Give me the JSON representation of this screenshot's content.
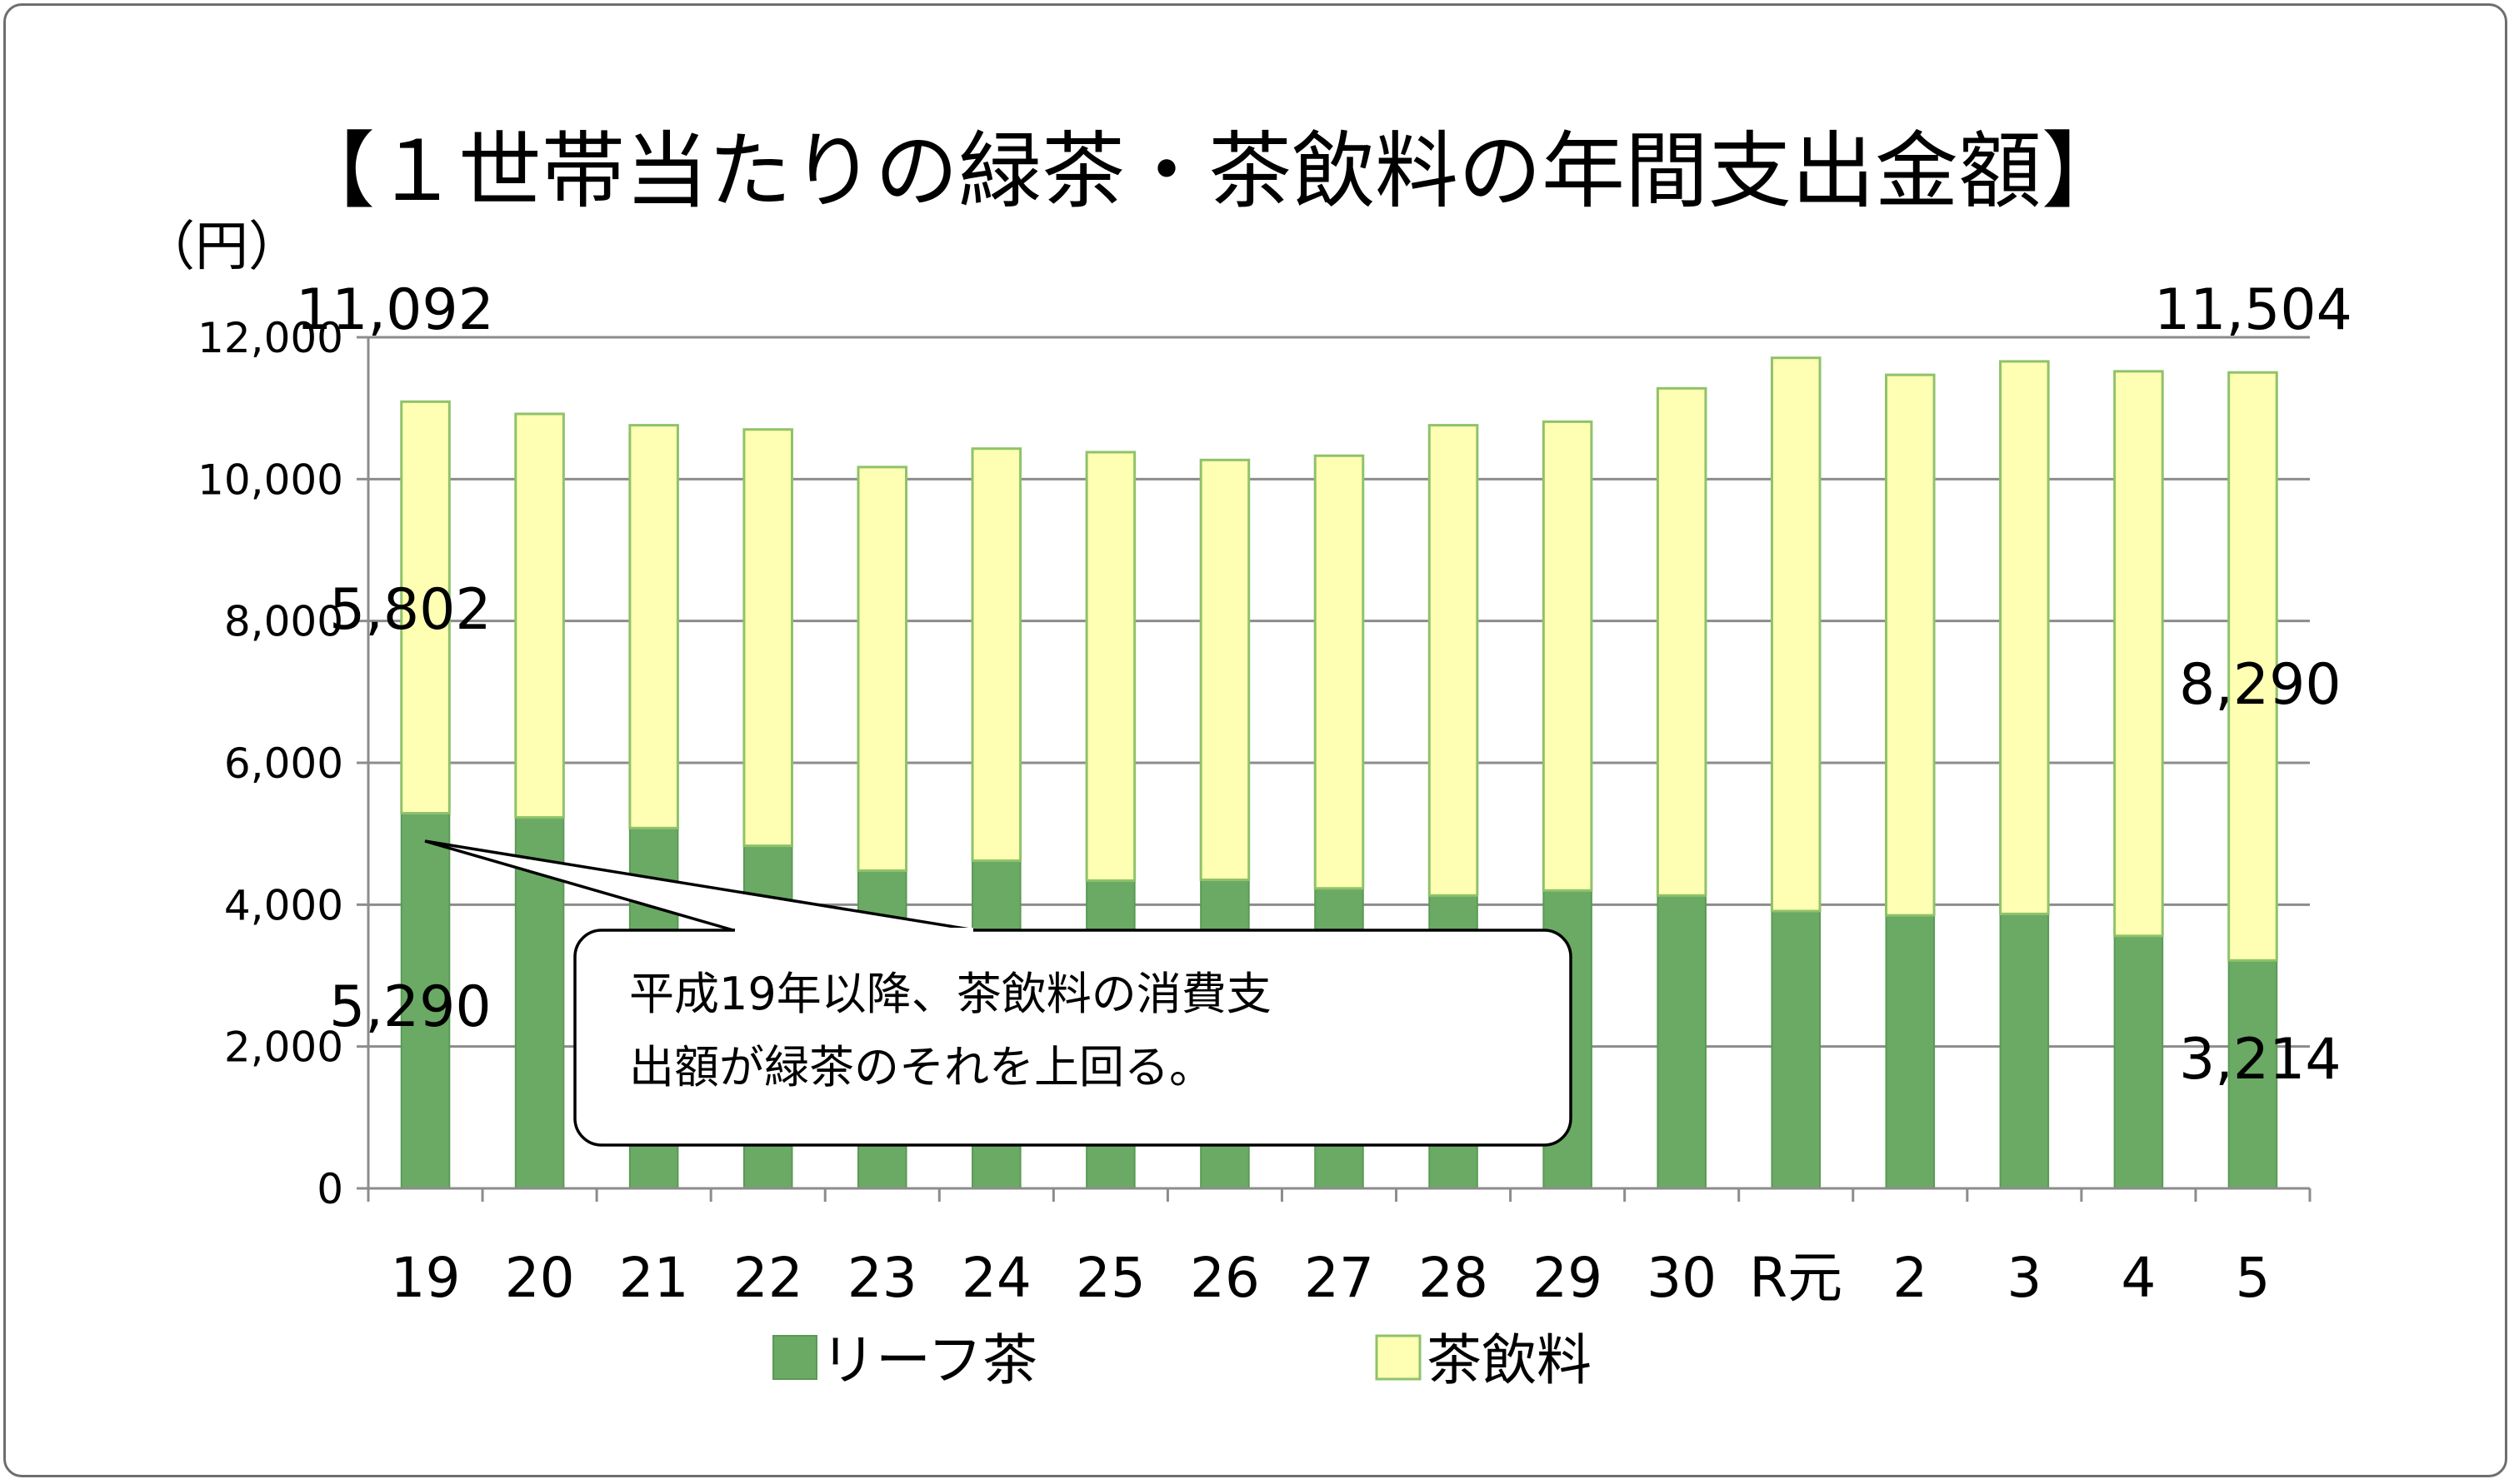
{
  "colors": {
    "leaf": "#6aaa64",
    "leaf_stroke": "#5a9a55",
    "drink": "#ffffb3",
    "drink_stroke": "#8fc26a",
    "grid": "#8c8c8c"
  },
  "chart_data": {
    "type": "bar",
    "stacked": true,
    "title": "【１世帯当たりの緑茶・茶飲料の年間支出金額】",
    "ylabel": "（円）",
    "ylim": [
      0,
      12000
    ],
    "yticks": [
      "0",
      "2,000",
      "4,000",
      "6,000",
      "8,000",
      "10,000",
      "12,000"
    ],
    "categories": [
      "19",
      "20",
      "21",
      "22",
      "23",
      "24",
      "25",
      "26",
      "27",
      "28",
      "29",
      "30",
      "R元",
      "2",
      "3",
      "4",
      "5"
    ],
    "series": [
      {
        "name": "リーフ茶",
        "values": [
          5290,
          5230,
          5080,
          4830,
          4480,
          4620,
          4340,
          4350,
          4230,
          4130,
          4200,
          4130,
          3910,
          3850,
          3870,
          3560,
          3214
        ]
      },
      {
        "name": "茶飲料",
        "values": [
          5802,
          5690,
          5680,
          5870,
          5690,
          5810,
          6040,
          5920,
          6100,
          6630,
          6610,
          7150,
          7800,
          7620,
          7790,
          7960,
          8290
        ]
      }
    ],
    "data_labels": {
      "total_first": "11,092",
      "total_last": "11,504",
      "drink_first": "5,802",
      "drink_last": "8,290",
      "leaf_first": "5,290",
      "leaf_last": "3,214"
    },
    "annotation": {
      "line1": "平成19年以降、茶飲料の消費支",
      "line2": "出額が緑茶のそれを上回る。"
    },
    "legend": [
      "リーフ茶",
      "茶飲料"
    ],
    "legend_position": "bottom",
    "grid": true
  }
}
